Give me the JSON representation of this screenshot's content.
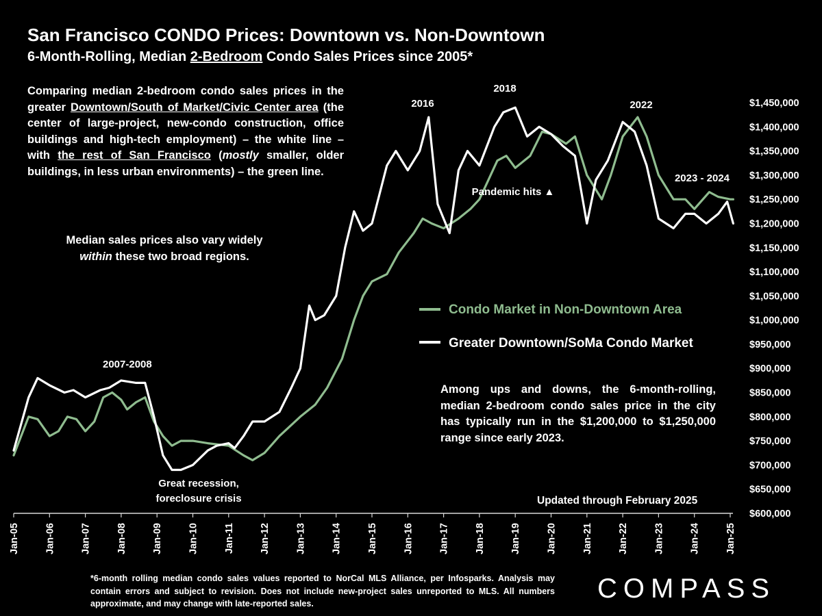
{
  "title": "San Francisco CONDO Prices: Downtown vs. Non-Downtown",
  "subtitle": {
    "before": "6-Month-Rolling, Median ",
    "underlined": "2-Bedroom",
    "after": " Condo Sales Prices since 2005*"
  },
  "intro": {
    "p1": "Comparing median 2-bedroom condo sales prices in the greater ",
    "u1": "Downtown/South of Market/Civic Center area",
    "p2": " (the center of large-project, new-condo construction, office buildings and high-tech employment) – the white line – with ",
    "u2": "the rest of San Francisco",
    "p3": " (",
    "em": "mostly",
    "p4": " smaller, older buildings, in less urban environments) – the green line."
  },
  "note2": {
    "line1": "Median sales prices also vary widely",
    "em": "within",
    "line2_rest": " these two broad regions."
  },
  "note3": "Among ups and downs, the 6-month-rolling, median 2-bedroom condo sales price in the city has typically run in the $1,200,000 to $1,250,000 range since early 2023.",
  "updated": "Updated through February 2025",
  "footnote": "*6-month rolling median condo sales values reported to NorCal MLS Alliance, per Infosparks. Analysis may contain errors and subject to revision. Does not include new-project sales unreported to MLS. All numbers approximate, and may change with late-reported sales.",
  "brand": "COMPASS",
  "colors": {
    "green": "#8fbc8f",
    "white": "#ffffff",
    "background": "#000000"
  },
  "chart_data": {
    "type": "line",
    "ylim": [
      600000,
      1450000
    ],
    "x_tick_labels": [
      "Jan-05",
      "Jan-06",
      "Jan-07",
      "Jan-08",
      "Jan-09",
      "Jan-10",
      "Jan-11",
      "Jan-12",
      "Jan-13",
      "Jan-14",
      "Jan-15",
      "Jan-16",
      "Jan-17",
      "Jan-18",
      "Jan-19",
      "Jan-20",
      "Jan-21",
      "Jan-22",
      "Jan-23",
      "Jan-24",
      "Jan-25"
    ],
    "y_tick_labels": [
      "$1,450,000",
      "$1,400,000",
      "$1,350,000",
      "$1,300,000",
      "$1,250,000",
      "$1,200,000",
      "$1,150,000",
      "$1,100,000",
      "$1,050,000",
      "$1,000,000",
      "$950,000",
      "$900,000",
      "$850,000",
      "$800,000",
      "$750,000",
      "$700,000",
      "$650,000",
      "$600,000"
    ],
    "y_tick_values": [
      1450000,
      1400000,
      1350000,
      1300000,
      1250000,
      1200000,
      1150000,
      1100000,
      1050000,
      1000000,
      950000,
      900000,
      850000,
      800000,
      750000,
      700000,
      650000,
      600000
    ],
    "series": [
      {
        "name": "Condo Market in Non-Downtown Area",
        "color": "#8fbc8f",
        "x": [
          "2005-01",
          "2005-06",
          "2005-09",
          "2006-01",
          "2006-04",
          "2006-07",
          "2006-10",
          "2007-01",
          "2007-04",
          "2007-07",
          "2007-10",
          "2008-01",
          "2008-03",
          "2008-06",
          "2008-09",
          "2008-12",
          "2009-03",
          "2009-06",
          "2009-09",
          "2010-01",
          "2010-06",
          "2011-01",
          "2011-06",
          "2011-09",
          "2012-01",
          "2012-06",
          "2013-01",
          "2013-06",
          "2013-10",
          "2014-03",
          "2014-07",
          "2014-10",
          "2015-01",
          "2015-06",
          "2015-10",
          "2016-03",
          "2016-06",
          "2016-09",
          "2017-01",
          "2017-06",
          "2017-10",
          "2018-01",
          "2018-04",
          "2018-07",
          "2018-10",
          "2019-01",
          "2019-06",
          "2019-10",
          "2020-01",
          "2020-06",
          "2020-09",
          "2021-01",
          "2021-06",
          "2021-09",
          "2022-01",
          "2022-06",
          "2022-09",
          "2023-01",
          "2023-06",
          "2023-10",
          "2024-01",
          "2024-06",
          "2024-09",
          "2025-01",
          "2025-02"
        ],
        "y": [
          720000,
          800000,
          795000,
          760000,
          770000,
          800000,
          795000,
          770000,
          790000,
          840000,
          850000,
          835000,
          815000,
          830000,
          840000,
          790000,
          760000,
          740000,
          750000,
          750000,
          745000,
          740000,
          720000,
          710000,
          725000,
          760000,
          800000,
          825000,
          860000,
          920000,
          1000000,
          1050000,
          1080000,
          1095000,
          1140000,
          1180000,
          1210000,
          1200000,
          1190000,
          1210000,
          1230000,
          1250000,
          1290000,
          1330000,
          1340000,
          1315000,
          1340000,
          1390000,
          1385000,
          1365000,
          1380000,
          1300000,
          1250000,
          1300000,
          1380000,
          1420000,
          1380000,
          1300000,
          1250000,
          1250000,
          1230000,
          1265000,
          1255000,
          1250000,
          1250000
        ]
      },
      {
        "name": "Greater Downtown/SoMa Condo Market",
        "color": "#ffffff",
        "x": [
          "2005-01",
          "2005-06",
          "2005-09",
          "2006-01",
          "2006-06",
          "2006-09",
          "2007-01",
          "2007-06",
          "2007-09",
          "2008-01",
          "2008-06",
          "2008-09",
          "2008-12",
          "2009-03",
          "2009-06",
          "2009-09",
          "2010-01",
          "2010-06",
          "2010-09",
          "2011-01",
          "2011-03",
          "2011-06",
          "2011-09",
          "2012-01",
          "2012-06",
          "2012-10",
          "2013-01",
          "2013-04",
          "2013-06",
          "2013-09",
          "2014-01",
          "2014-04",
          "2014-07",
          "2014-10",
          "2015-01",
          "2015-06",
          "2015-09",
          "2016-01",
          "2016-05",
          "2016-08",
          "2016-11",
          "2017-03",
          "2017-06",
          "2017-09",
          "2018-01",
          "2018-06",
          "2018-09",
          "2019-01",
          "2019-05",
          "2019-09",
          "2020-01",
          "2020-05",
          "2020-09",
          "2021-01",
          "2021-04",
          "2021-08",
          "2022-01",
          "2022-05",
          "2022-09",
          "2023-01",
          "2023-06",
          "2023-10",
          "2024-01",
          "2024-05",
          "2024-09",
          "2024-12",
          "2025-02"
        ],
        "y": [
          730000,
          840000,
          880000,
          865000,
          850000,
          855000,
          840000,
          855000,
          860000,
          875000,
          870000,
          870000,
          800000,
          720000,
          690000,
          690000,
          700000,
          730000,
          740000,
          745000,
          735000,
          760000,
          790000,
          790000,
          810000,
          860000,
          900000,
          1030000,
          1000000,
          1010000,
          1050000,
          1150000,
          1225000,
          1185000,
          1200000,
          1320000,
          1350000,
          1310000,
          1350000,
          1420000,
          1240000,
          1180000,
          1310000,
          1350000,
          1320000,
          1400000,
          1430000,
          1440000,
          1380000,
          1400000,
          1385000,
          1360000,
          1340000,
          1200000,
          1290000,
          1330000,
          1410000,
          1390000,
          1320000,
          1210000,
          1190000,
          1220000,
          1220000,
          1200000,
          1220000,
          1245000,
          1200000
        ]
      }
    ],
    "annotations": [
      "2007-2008",
      "Great recession,",
      "foreclosure crisis",
      "2016",
      "2018",
      "Pandemic hits ▲",
      "2022",
      "2023 - 2024"
    ]
  }
}
